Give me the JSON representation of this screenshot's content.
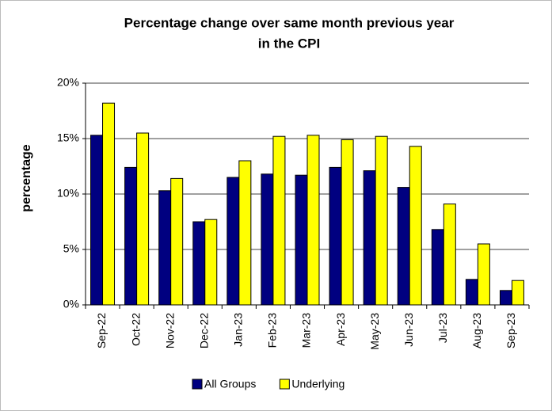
{
  "chart_data": {
    "type": "bar",
    "title": [
      "Percentage change  over same month previous year",
      "in the CPI"
    ],
    "y_label": "percentage",
    "categories": [
      "Sep-22",
      "Oct-22",
      "Nov-22",
      "Dec-22",
      "Jan-23",
      "Feb-23",
      "Mar-23",
      "Apr-23",
      "May-23",
      "Jun-23",
      "Jul-23",
      "Aug-23",
      "Sep-23"
    ],
    "series": [
      {
        "name": "All Groups",
        "color": "#000080",
        "values": [
          15.3,
          12.4,
          10.3,
          7.5,
          11.5,
          11.8,
          11.7,
          12.4,
          12.1,
          10.6,
          6.8,
          2.3,
          1.3
        ]
      },
      {
        "name": "Underlying",
        "color": "#ffff00",
        "values": [
          18.2,
          15.5,
          11.4,
          7.7,
          13.0,
          15.2,
          15.3,
          14.9,
          15.2,
          14.3,
          9.1,
          5.5,
          2.2
        ]
      }
    ],
    "ylim": [
      0,
      20
    ],
    "yticks": [
      {
        "value": 0,
        "label": "0%"
      },
      {
        "value": 5,
        "label": "5%"
      },
      {
        "value": 10,
        "label": "10%"
      },
      {
        "value": 15,
        "label": "15%"
      },
      {
        "value": 20,
        "label": "20%"
      }
    ],
    "grid": true,
    "legend": "bottom"
  }
}
